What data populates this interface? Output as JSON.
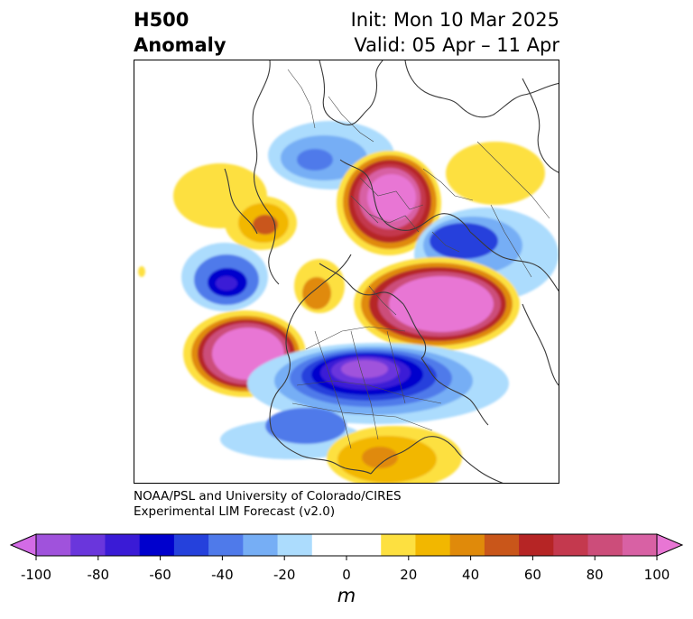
{
  "header": {
    "title_line1": "H500",
    "title_line2": "Anomaly",
    "init": "Init: Mon 10 Mar 2025",
    "valid": "Valid: 05 Apr – 11 Apr"
  },
  "credit": {
    "line1": "NOAA/PSL and University of Colorado/CIRES",
    "line2": "Experimental LIM Forecast (v2.0)"
  },
  "colorbar": {
    "ticks": [
      "-100",
      "-80",
      "-60",
      "-40",
      "-20",
      "0",
      "20",
      "40",
      "60",
      "80",
      "100"
    ],
    "units": "m",
    "colors": [
      "#d36be6",
      "#a052dc",
      "#6a36dc",
      "#3a1bd6",
      "#0000cd",
      "#2541dc",
      "#4f7aea",
      "#76aef5",
      "#acdcfd",
      "#ffffff",
      "#ffffff",
      "#fde040",
      "#f2b700",
      "#e08a0a",
      "#c9561a",
      "#b62525",
      "#c4394e",
      "#cc4d7a",
      "#d861a4",
      "#e876d4"
    ]
  }
}
